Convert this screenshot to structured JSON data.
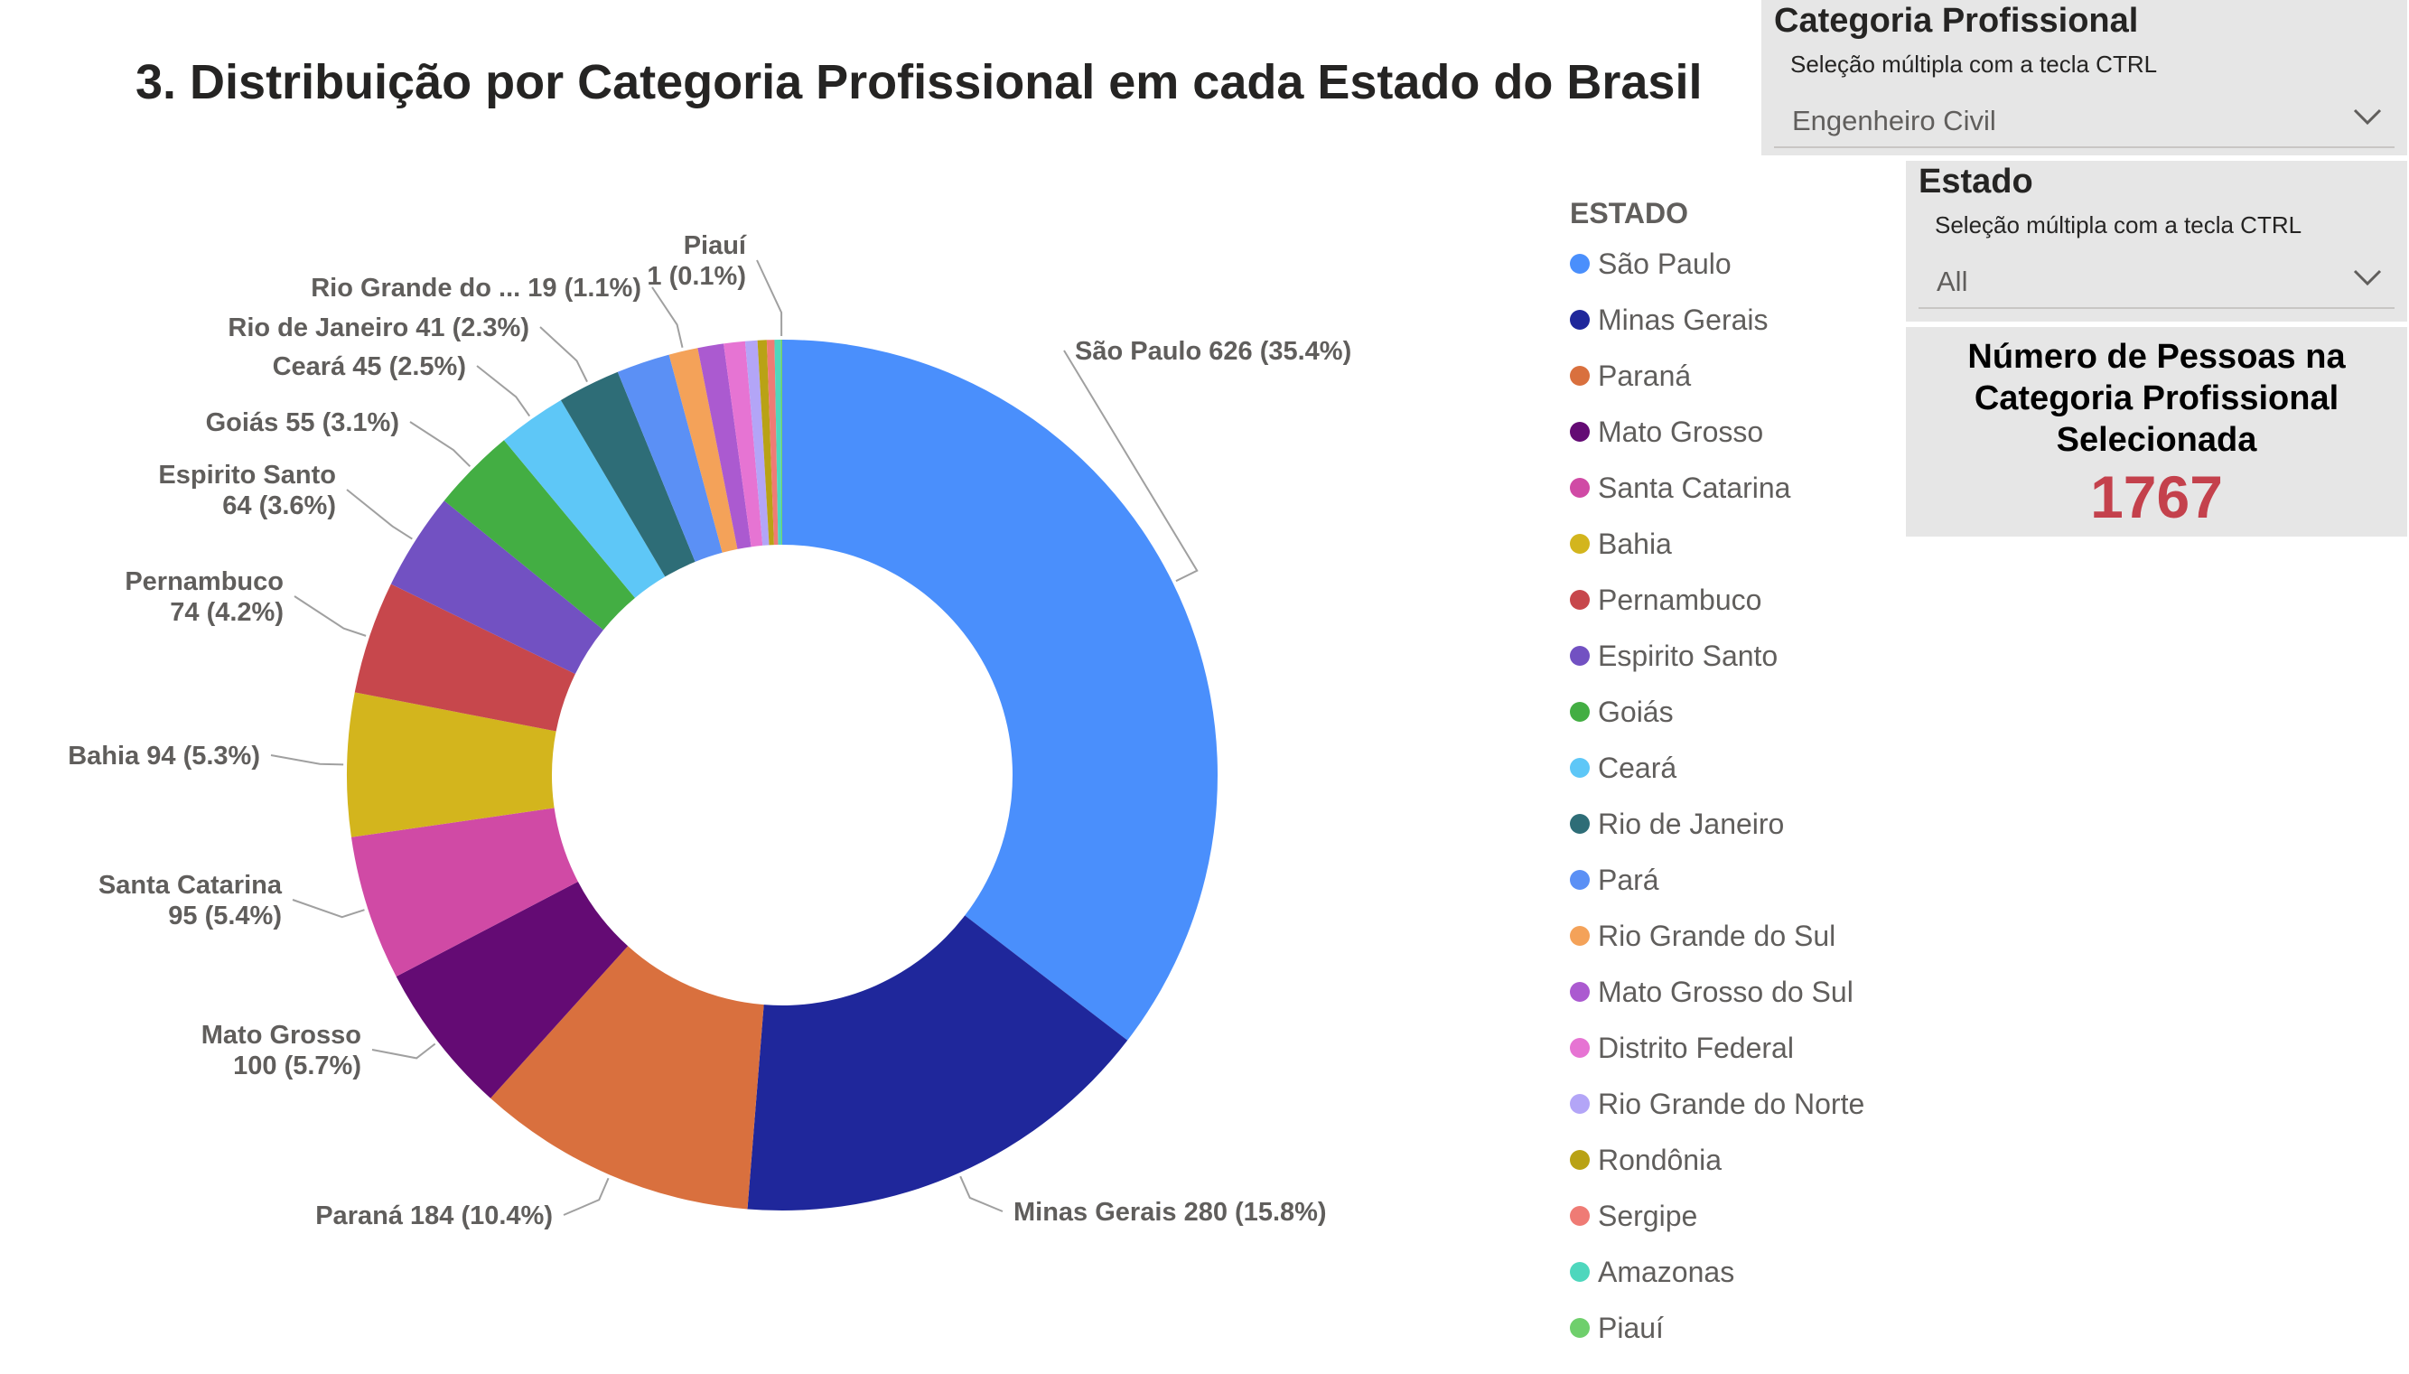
{
  "title": "3. Distribuição por Categoria Profissional em cada Estado do Brasil",
  "legend": {
    "title": "ESTADO",
    "items": [
      {
        "label": "São Paulo",
        "color": "#4a8ffc"
      },
      {
        "label": "Minas Gerais",
        "color": "#1f279b"
      },
      {
        "label": "Paraná",
        "color": "#d9703e"
      },
      {
        "label": "Mato Grosso",
        "color": "#640b74"
      },
      {
        "label": "Santa Catarina",
        "color": "#d04aa5"
      },
      {
        "label": "Bahia",
        "color": "#d3b51d"
      },
      {
        "label": "Pernambuco",
        "color": "#c7474c"
      },
      {
        "label": "Espirito Santo",
        "color": "#7251c2"
      },
      {
        "label": "Goiás",
        "color": "#43ae43"
      },
      {
        "label": "Ceará",
        "color": "#5ec7f7"
      },
      {
        "label": "Rio de Janeiro",
        "color": "#2e6d77"
      },
      {
        "label": "Pará",
        "color": "#5b90f5"
      },
      {
        "label": "Rio Grande do Sul",
        "color": "#f4a259"
      },
      {
        "label": "Mato Grosso do Sul",
        "color": "#ab5ad0"
      },
      {
        "label": "Distrito Federal",
        "color": "#e674d3"
      },
      {
        "label": "Rio Grande do Norte",
        "color": "#b3a5f7"
      },
      {
        "label": "Rondônia",
        "color": "#b9a215"
      },
      {
        "label": "Sergipe",
        "color": "#ef7b75"
      },
      {
        "label": "Amazonas",
        "color": "#4ed7bd"
      },
      {
        "label": "Piauí",
        "color": "#6fcf6c"
      }
    ]
  },
  "slicers": {
    "categoria": {
      "title": "Categoria Profissional",
      "subtitle": "Seleção múltipla com a tecla CTRL",
      "value": "Engenheiro Civil"
    },
    "estado": {
      "title": "Estado",
      "subtitle": "Seleção múltipla com a tecla CTRL",
      "value": "All"
    }
  },
  "card": {
    "title": "Número de Pessoas na Categoria Profissional Selecionada",
    "value": "1767"
  },
  "chart_data": {
    "type": "donut",
    "total": 1767,
    "slices": [
      {
        "name": "São Paulo",
        "value": 626,
        "pct": "35.4%",
        "color": "#4a8ffc",
        "label": "São Paulo 626 (35.4%)"
      },
      {
        "name": "Minas Gerais",
        "value": 280,
        "pct": "15.8%",
        "color": "#1f279b",
        "label": "Minas Gerais 280 (15.8%)"
      },
      {
        "name": "Paraná",
        "value": 184,
        "pct": "10.4%",
        "color": "#d9703e",
        "label": "Paraná 184 (10.4%)"
      },
      {
        "name": "Mato Grosso",
        "value": 100,
        "pct": "5.7%",
        "color": "#640b74",
        "label": [
          "Mato Grosso",
          "100 (5.7%)"
        ]
      },
      {
        "name": "Santa Catarina",
        "value": 95,
        "pct": "5.4%",
        "color": "#d04aa5",
        "label": [
          "Santa Catarina",
          "95 (5.4%)"
        ]
      },
      {
        "name": "Bahia",
        "value": 94,
        "pct": "5.3%",
        "color": "#d3b51d",
        "label": "Bahia 94 (5.3%)"
      },
      {
        "name": "Pernambuco",
        "value": 74,
        "pct": "4.2%",
        "color": "#c7474c",
        "label": [
          "Pernambuco",
          "74 (4.2%)"
        ]
      },
      {
        "name": "Espirito Santo",
        "value": 64,
        "pct": "3.6%",
        "color": "#7251c2",
        "label": [
          "Espirito Santo",
          "64 (3.6%)"
        ]
      },
      {
        "name": "Goiás",
        "value": 55,
        "pct": "3.1%",
        "color": "#43ae43",
        "label": "Goiás 55 (3.1%)"
      },
      {
        "name": "Ceará",
        "value": 45,
        "pct": "2.5%",
        "color": "#5ec7f7",
        "label": "Ceará 45 (2.5%)"
      },
      {
        "name": "Rio de Janeiro",
        "value": 41,
        "pct": "2.3%",
        "color": "#2e6d77",
        "label": "Rio de Janeiro 41 (2.3%)"
      },
      {
        "name": "Pará",
        "value": 35,
        "color": "#5b90f5"
      },
      {
        "name": "Rio Grande do Sul",
        "value": 19,
        "pct": "1.1%",
        "color": "#f4a259",
        "label": "Rio Grande do ... 19 (1.1%)"
      },
      {
        "name": "Mato Grosso do Sul",
        "value": 17,
        "color": "#ab5ad0"
      },
      {
        "name": "Distrito Federal",
        "value": 14,
        "color": "#e674d3"
      },
      {
        "name": "Rio Grande do Norte",
        "value": 8,
        "color": "#b3a5f7"
      },
      {
        "name": "Rondônia",
        "value": 6,
        "color": "#b9a215"
      },
      {
        "name": "Sergipe",
        "value": 5,
        "color": "#ef7b75"
      },
      {
        "name": "Amazonas",
        "value": 4,
        "color": "#4ed7bd"
      },
      {
        "name": "Piauí",
        "value": 1,
        "pct": "0.1%",
        "color": "#6fcf6c",
        "label": [
          "Piauí",
          "1 (0.1%)"
        ]
      }
    ]
  }
}
